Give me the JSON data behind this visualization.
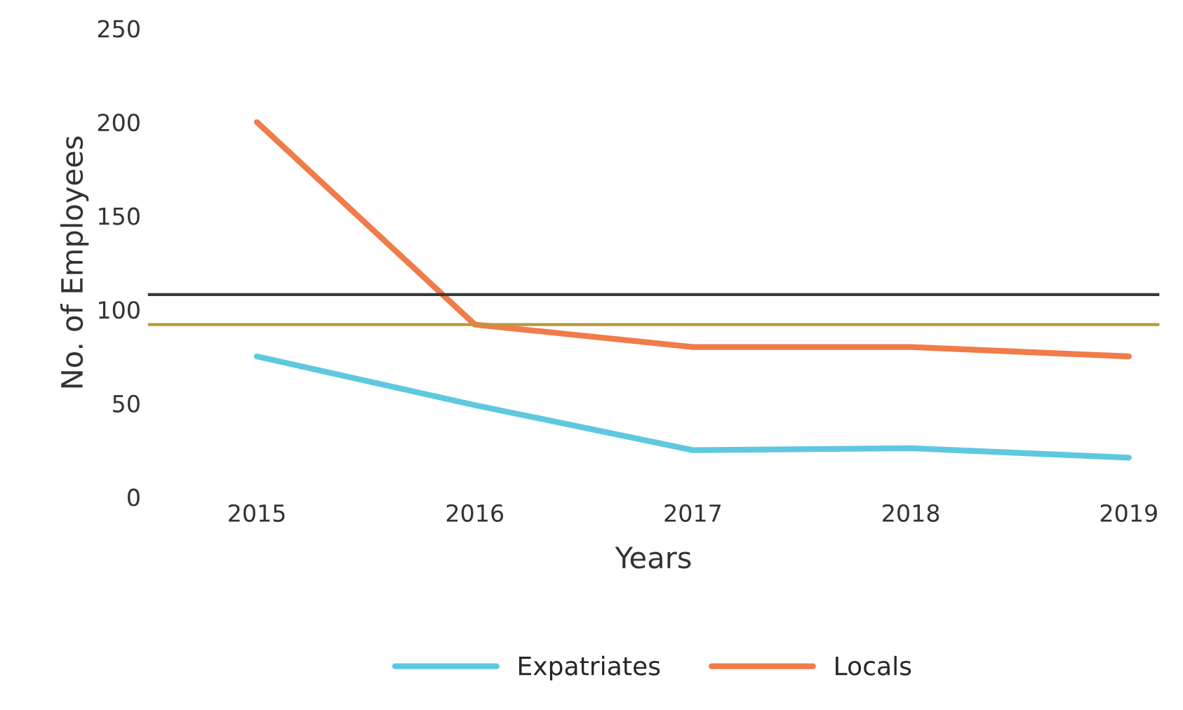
{
  "chart_data": {
    "type": "line",
    "xlabel": "Years",
    "ylabel": "No. of Employees",
    "categories": [
      "2015",
      "2016",
      "2017",
      "2018",
      "2019"
    ],
    "series": [
      {
        "name": "Expatriates",
        "color": "#5fc8e0",
        "values": [
          75,
          49,
          25,
          26,
          21
        ]
      },
      {
        "name": "Locals",
        "color": "#f07c4a",
        "values": [
          200,
          92,
          80,
          80,
          75
        ]
      }
    ],
    "ylim": [
      0,
      250
    ],
    "yticks": [
      0,
      50,
      100,
      150,
      200,
      250
    ],
    "ref_lines": [
      {
        "axis": "y",
        "value": 108,
        "label": null,
        "color": "#3a3a3a",
        "line_style": "solid"
      },
      {
        "axis": "y",
        "value": 92,
        "label": null,
        "color": "#b89a3a",
        "line_style": "solid"
      }
    ],
    "grid": false,
    "legend": "bottom",
    "marker": "none",
    "line_style": "solid"
  }
}
